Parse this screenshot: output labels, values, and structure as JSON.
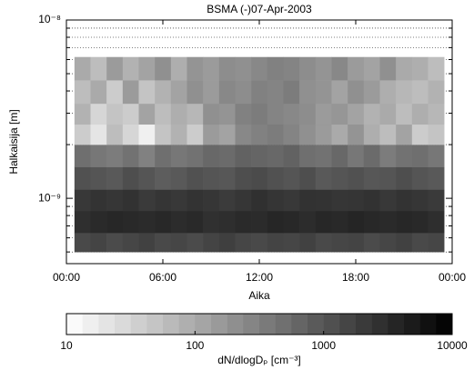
{
  "chart_data": {
    "type": "heatmap",
    "title": "BSMA (-)07-Apr-2003",
    "xlabel": "Aika",
    "ylabel": "Halkaisija [m]",
    "colorbar_label": "dN/dlogDₚ [cm⁻³]",
    "x": [
      0.5,
      1.5,
      2.5,
      3.5,
      4.5,
      5.5,
      6.5,
      7.5,
      8.5,
      9.5,
      10.5,
      11.5,
      12.5,
      13.5,
      14.5,
      15.5,
      16.5,
      17.5,
      18.5,
      19.5,
      20.5,
      21.5,
      22.5,
      23.5
    ],
    "y": [
      5e-10,
      6.4e-10,
      8.5e-10,
      1.12e-09,
      1.5e-09,
      2e-09,
      2.6e-09,
      3.4e-09,
      4.6e-09,
      6.2e-09
    ],
    "values": [
      [
        1400,
        1600,
        1300,
        1500,
        1700,
        1400,
        1500,
        1300,
        1600,
        1800,
        1500,
        1400,
        1600,
        1500,
        1700,
        1400,
        1500,
        1600,
        1300,
        1500,
        1700,
        1400,
        1500
      ],
      [
        2800,
        3200,
        3500,
        3300,
        3100,
        3400,
        3000,
        3300,
        2700,
        2900,
        3200,
        3100,
        3600,
        3400,
        3000,
        3500,
        3300,
        3700,
        3400,
        3200,
        3500,
        3300,
        2900
      ],
      [
        2200,
        2500,
        2300,
        2600,
        2100,
        2400,
        2200,
        2500,
        2300,
        2000,
        2300,
        2700,
        2400,
        2200,
        2600,
        2500,
        2300,
        2400,
        2600,
        2200,
        2500,
        2300,
        2100
      ],
      [
        1100,
        1000,
        900,
        1200,
        1000,
        800,
        900,
        1100,
        1000,
        950,
        1200,
        1300,
        1100,
        1000,
        1200,
        900,
        1000,
        1100,
        950,
        1000,
        1200,
        1000,
        900
      ],
      [
        500,
        400,
        350,
        450,
        300,
        500,
        400,
        450,
        600,
        550,
        700,
        650,
        600,
        700,
        500,
        450,
        600,
        400,
        550,
        350,
        450,
        500,
        400
      ],
      [
        40,
        20,
        60,
        30,
        15,
        50,
        80,
        40,
        150,
        120,
        250,
        300,
        350,
        280,
        200,
        150,
        100,
        180,
        90,
        60,
        120,
        40,
        50
      ],
      [
        80,
        30,
        50,
        40,
        120,
        60,
        90,
        70,
        200,
        180,
        300,
        350,
        280,
        250,
        220,
        150,
        170,
        120,
        80,
        100,
        60,
        90,
        70
      ],
      [
        60,
        100,
        40,
        150,
        50,
        80,
        120,
        200,
        150,
        250,
        220,
        300,
        280,
        350,
        200,
        180,
        120,
        200,
        150,
        90,
        70,
        60,
        80
      ],
      [
        100,
        60,
        150,
        80,
        120,
        200,
        90,
        180,
        150,
        220,
        200,
        250,
        300,
        280,
        220,
        180,
        250,
        150,
        120,
        200,
        100,
        90,
        60
      ]
    ],
    "xlim": [
      0,
      24
    ],
    "xticks": [
      {
        "value": 0,
        "label": "00:00"
      },
      {
        "value": 6,
        "label": "06:00"
      },
      {
        "value": 12,
        "label": "12:00"
      },
      {
        "value": 18,
        "label": "18:00"
      },
      {
        "value": 24,
        "label": "00:00"
      }
    ],
    "ylim": [
      4.3e-10,
      1e-08
    ],
    "yscale": "log",
    "yticks": [
      {
        "value": 1e-09,
        "label": "10⁻⁹"
      },
      {
        "value": 1e-08,
        "label": "10⁻⁸"
      }
    ],
    "yminorticks": [
      5e-10,
      6e-10,
      7e-10,
      8e-10,
      9e-10,
      2e-09,
      3e-09,
      4e-09,
      5e-09,
      6e-09,
      7e-09,
      8e-09,
      9e-09
    ],
    "minor_grid": true,
    "clim": [
      10,
      10000
    ],
    "cscale": "log",
    "cticks": [
      10,
      100,
      1000,
      10000
    ],
    "colormap": "gray-reversed"
  }
}
